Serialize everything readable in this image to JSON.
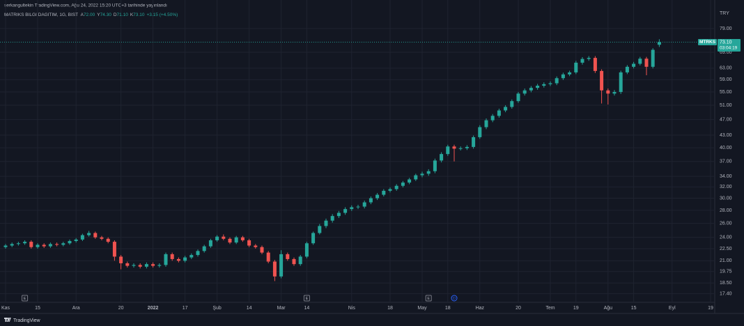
{
  "header": {
    "publisher": "serkangultekin TradingView.com, Ağu 24, 2022 15:20 UTC+3 tarihinde yayınlandı"
  },
  "footer": {
    "brand": "TradingView"
  },
  "chart_data": {
    "type": "candlestick",
    "title": "MATRIKS BILGI DAGITIM, 1G, BIST",
    "legend_items": [
      {
        "key": "A",
        "value": "72.00"
      },
      {
        "key": "Y",
        "value": "74.30"
      },
      {
        "key": "D",
        "value": "71.10"
      },
      {
        "key": "K",
        "value": "73.10"
      }
    ],
    "change_label": "+3.15 (+4.50%)",
    "symbol_tag": "MTRKS",
    "last_price_label": "73.10",
    "countdown": "03:04:19",
    "y_axis_label": "TRY",
    "log_scale": true,
    "grid": true,
    "up_color": "#26a69a",
    "down_color": "#ef5350",
    "events": [
      "E",
      "E",
      "E",
      "D"
    ],
    "ylim": [
      16.5,
      82.5
    ],
    "yticks": [
      {
        "value": 79,
        "label": "79.00"
      },
      {
        "value": 69,
        "label": "69.00"
      },
      {
        "value": 63,
        "label": "63.00"
      },
      {
        "value": 59,
        "label": "59.00"
      },
      {
        "value": 55,
        "label": "55.00"
      },
      {
        "value": 51,
        "label": "51.00"
      },
      {
        "value": 47,
        "label": "47.00"
      },
      {
        "value": 43,
        "label": "43.00"
      },
      {
        "value": 40,
        "label": "40.00"
      },
      {
        "value": 37,
        "label": "37.00"
      },
      {
        "value": 34,
        "label": "34.00"
      },
      {
        "value": 32,
        "label": "32.00"
      },
      {
        "value": 30,
        "label": "30.00"
      },
      {
        "value": 28,
        "label": "28.00"
      },
      {
        "value": 26,
        "label": "26.00"
      },
      {
        "value": 24,
        "label": "24.00"
      },
      {
        "value": 22.5,
        "label": "22.50"
      },
      {
        "value": 21,
        "label": "21.00"
      },
      {
        "value": 19.75,
        "label": "19.75"
      },
      {
        "value": 18.5,
        "label": "18.50"
      },
      {
        "value": 17.4,
        "label": "17.40"
      }
    ],
    "categories": [
      "Kas",
      null,
      null,
      null,
      null,
      "15",
      null,
      null,
      null,
      null,
      null,
      "Ara",
      null,
      null,
      null,
      null,
      null,
      null,
      "20",
      null,
      null,
      null,
      null,
      "2022",
      null,
      null,
      null,
      null,
      "17",
      null,
      null,
      null,
      null,
      "Şub",
      null,
      null,
      null,
      null,
      "14",
      null,
      null,
      null,
      null,
      "Mar",
      null,
      null,
      null,
      "14",
      null,
      null,
      null,
      null,
      null,
      null,
      "Nis",
      null,
      null,
      null,
      null,
      null,
      "18",
      null,
      null,
      null,
      null,
      "May",
      null,
      null,
      null,
      "18",
      null,
      null,
      null,
      null,
      "Haz",
      null,
      null,
      null,
      null,
      null,
      "20",
      null,
      null,
      null,
      null,
      "Tem",
      null,
      null,
      null,
      "19",
      null,
      null,
      null,
      null,
      "Ağu",
      null,
      null,
      null,
      "15",
      null,
      null,
      null,
      null,
      null,
      "Eyl",
      null,
      null,
      null,
      null,
      null,
      "19"
    ],
    "open": [
      22.7,
      22.9,
      23.1,
      23.2,
      23.4,
      22.7,
      23.0,
      22.8,
      23.1,
      23.0,
      23.2,
      23.5,
      23.7,
      24.3,
      24.6,
      24.0,
      23.8,
      23.4,
      21.5,
      20.7,
      20.4,
      20.5,
      20.3,
      20.6,
      20.4,
      20.5,
      21.8,
      21.2,
      21.0,
      21.4,
      21.7,
      22.2,
      22.8,
      23.6,
      24.1,
      23.8,
      23.3,
      24.0,
      23.6,
      22.9,
      22.7,
      22.0,
      20.9,
      19.2,
      21.8,
      21.2,
      20.6,
      21.5,
      23.2,
      24.6,
      25.6,
      26.4,
      27.1,
      27.6,
      28.2,
      28.5,
      28.6,
      29.3,
      30.0,
      30.6,
      31.3,
      31.6,
      32.2,
      32.8,
      33.4,
      34.2,
      34.5,
      35.0,
      37.2,
      38.6,
      40.3,
      39.8,
      39.9,
      40.2,
      42.5,
      45.0,
      46.8,
      48.0,
      49.5,
      50.5,
      52.2,
      54.5,
      55.5,
      56.3,
      57.0,
      57.5,
      57.8,
      59.5,
      60.8,
      61.5,
      65.0,
      66.4,
      66.8,
      62.0,
      55.5,
      54.5,
      55.0,
      61.5,
      63.5,
      64.6,
      66.5,
      63.5,
      72.0,
      null,
      null,
      null,
      null,
      null,
      null,
      null,
      null
    ],
    "high": [
      23.1,
      23.3,
      23.4,
      23.6,
      23.6,
      23.2,
      23.2,
      23.3,
      23.3,
      23.4,
      23.7,
      23.9,
      24.5,
      24.9,
      24.8,
      24.2,
      24.0,
      23.6,
      21.7,
      20.9,
      20.7,
      20.7,
      20.8,
      20.8,
      20.7,
      22.0,
      22.0,
      21.4,
      21.6,
      21.9,
      22.4,
      23.0,
      23.8,
      24.3,
      24.4,
      24.0,
      24.2,
      24.2,
      23.8,
      23.1,
      22.9,
      22.2,
      21.1,
      22.3,
      22.0,
      21.4,
      21.7,
      23.4,
      24.8,
      25.9,
      26.7,
      27.4,
      27.9,
      28.5,
      28.8,
      28.9,
      29.6,
      30.3,
      30.9,
      31.6,
      31.9,
      32.5,
      33.1,
      33.7,
      34.5,
      34.9,
      35.4,
      37.6,
      39.0,
      40.7,
      40.7,
      40.3,
      40.6,
      42.9,
      45.5,
      47.3,
      48.5,
      50.0,
      51.0,
      52.7,
      55.0,
      56.1,
      56.9,
      57.6,
      58.1,
      58.4,
      60.1,
      61.4,
      62.1,
      65.7,
      67.1,
      67.5,
      67.5,
      62.6,
      56.1,
      55.6,
      62.1,
      64.1,
      65.3,
      67.2,
      67.2,
      70.6,
      74.3,
      null,
      null,
      null,
      null,
      null,
      null,
      null,
      null
    ],
    "low": [
      22.5,
      22.7,
      22.9,
      23.0,
      22.5,
      22.5,
      22.6,
      22.6,
      22.8,
      22.8,
      23.0,
      23.3,
      23.5,
      24.1,
      23.8,
      23.6,
      23.2,
      21.0,
      20.0,
      20.2,
      20.2,
      20.1,
      20.1,
      20.2,
      20.2,
      20.3,
      21.0,
      20.8,
      20.8,
      21.2,
      21.5,
      22.0,
      22.6,
      23.4,
      23.6,
      23.1,
      23.1,
      23.4,
      22.7,
      22.5,
      21.8,
      20.7,
      18.7,
      19.0,
      21.0,
      20.4,
      20.4,
      21.3,
      23.0,
      24.4,
      25.3,
      26.1,
      26.8,
      27.3,
      27.9,
      28.2,
      28.3,
      29.0,
      29.7,
      30.3,
      31.0,
      31.3,
      31.9,
      32.5,
      33.1,
      33.8,
      34.1,
      34.6,
      36.8,
      38.2,
      37.0,
      39.4,
      39.5,
      39.8,
      42.1,
      44.5,
      46.3,
      47.5,
      49.0,
      50.0,
      51.7,
      53.9,
      54.9,
      55.7,
      56.4,
      56.9,
      57.2,
      58.9,
      60.2,
      60.9,
      64.3,
      65.7,
      61.3,
      51.5,
      51.2,
      53.9,
      54.4,
      60.9,
      62.9,
      64.0,
      60.5,
      62.9,
      71.1,
      null,
      null,
      null,
      null,
      null,
      null,
      null,
      null
    ],
    "close": [
      22.9,
      23.1,
      23.2,
      23.4,
      22.7,
      23.0,
      22.8,
      23.1,
      23.0,
      23.2,
      23.5,
      23.7,
      24.3,
      24.6,
      24.0,
      23.8,
      23.4,
      21.5,
      20.7,
      20.4,
      20.5,
      20.3,
      20.6,
      20.4,
      20.5,
      21.8,
      21.2,
      21.0,
      21.4,
      21.7,
      22.2,
      22.8,
      23.6,
      24.1,
      23.8,
      23.3,
      24.0,
      23.6,
      22.9,
      22.7,
      22.0,
      20.9,
      19.2,
      21.8,
      21.2,
      20.6,
      21.5,
      23.2,
      24.6,
      25.6,
      26.4,
      27.1,
      27.6,
      28.2,
      28.5,
      28.6,
      29.3,
      30.0,
      30.6,
      31.3,
      31.6,
      32.2,
      32.8,
      33.4,
      34.2,
      34.5,
      35.0,
      37.2,
      38.6,
      40.3,
      39.8,
      39.9,
      40.2,
      42.5,
      45.0,
      46.8,
      48.0,
      49.5,
      50.5,
      52.2,
      54.5,
      55.5,
      56.3,
      57.0,
      57.5,
      57.8,
      59.5,
      60.8,
      61.5,
      65.0,
      66.4,
      66.8,
      62.0,
      55.5,
      54.5,
      55.0,
      61.5,
      63.5,
      64.6,
      66.5,
      63.5,
      69.95,
      73.1,
      null,
      null,
      null,
      null,
      null,
      null,
      null,
      null
    ]
  }
}
